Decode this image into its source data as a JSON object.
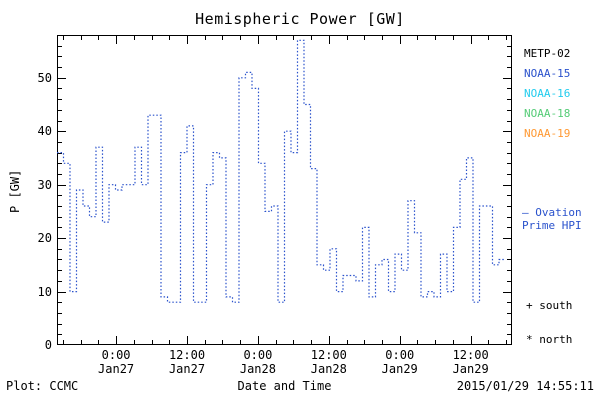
{
  "footer": {
    "plot_credit": "Plot: CCMC",
    "timestamp": "2015/01/29 14:55:11"
  },
  "legend": {
    "satellites": [
      {
        "label": "METP-02",
        "color": "#000000"
      },
      {
        "label": "NOAA-15",
        "color": "#2a52cc"
      },
      {
        "label": "NOAA-16",
        "color": "#22ccee"
      },
      {
        "label": "NOAA-18",
        "color": "#55cc77"
      },
      {
        "label": "NOAA-19",
        "color": "#ff9933"
      }
    ],
    "line_label_1": "— Ovation",
    "line_label_2": "Prime HPI",
    "line_color": "#2a52cc",
    "south_label": "+ south",
    "north_label": "* north"
  },
  "chart_data": {
    "type": "line",
    "title": "Hemispheric Power [GW]",
    "xlabel": "Date and Time",
    "ylabel": "P [GW]",
    "ylim": [
      0,
      58
    ],
    "y_ticks": [
      0,
      10,
      20,
      30,
      40,
      50
    ],
    "x_range_hours": 77,
    "x_tick_hours": [
      10,
      22,
      34,
      46,
      58,
      70
    ],
    "x_tick_labels": [
      [
        "0:00",
        "Jan27"
      ],
      [
        "12:00",
        "Jan27"
      ],
      [
        "0:00",
        "Jan28"
      ],
      [
        "12:00",
        "Jan28"
      ],
      [
        "0:00",
        "Jan29"
      ],
      [
        "12:00",
        "Jan29"
      ]
    ],
    "grid": false,
    "legend_position": "right",
    "series": [
      {
        "name": "Ovation Prime HPI",
        "color": "#2a52cc",
        "line_style": "dotted",
        "interpolation": "step",
        "step_hours": 1.1,
        "values": [
          36,
          34,
          10,
          29,
          26,
          24,
          37,
          23,
          30,
          29,
          30,
          30,
          37,
          30,
          43,
          43,
          9,
          8,
          8,
          36,
          41,
          8,
          8,
          30,
          36,
          35,
          9,
          8,
          50,
          51,
          48,
          34,
          25,
          26,
          8,
          40,
          36,
          57,
          45,
          33,
          15,
          14,
          18,
          10,
          13,
          13,
          12,
          22,
          9,
          15,
          16,
          10,
          17,
          14,
          27,
          21,
          9,
          10,
          9,
          17,
          10,
          22,
          31,
          35,
          8,
          26,
          26,
          15,
          16
        ]
      }
    ]
  }
}
